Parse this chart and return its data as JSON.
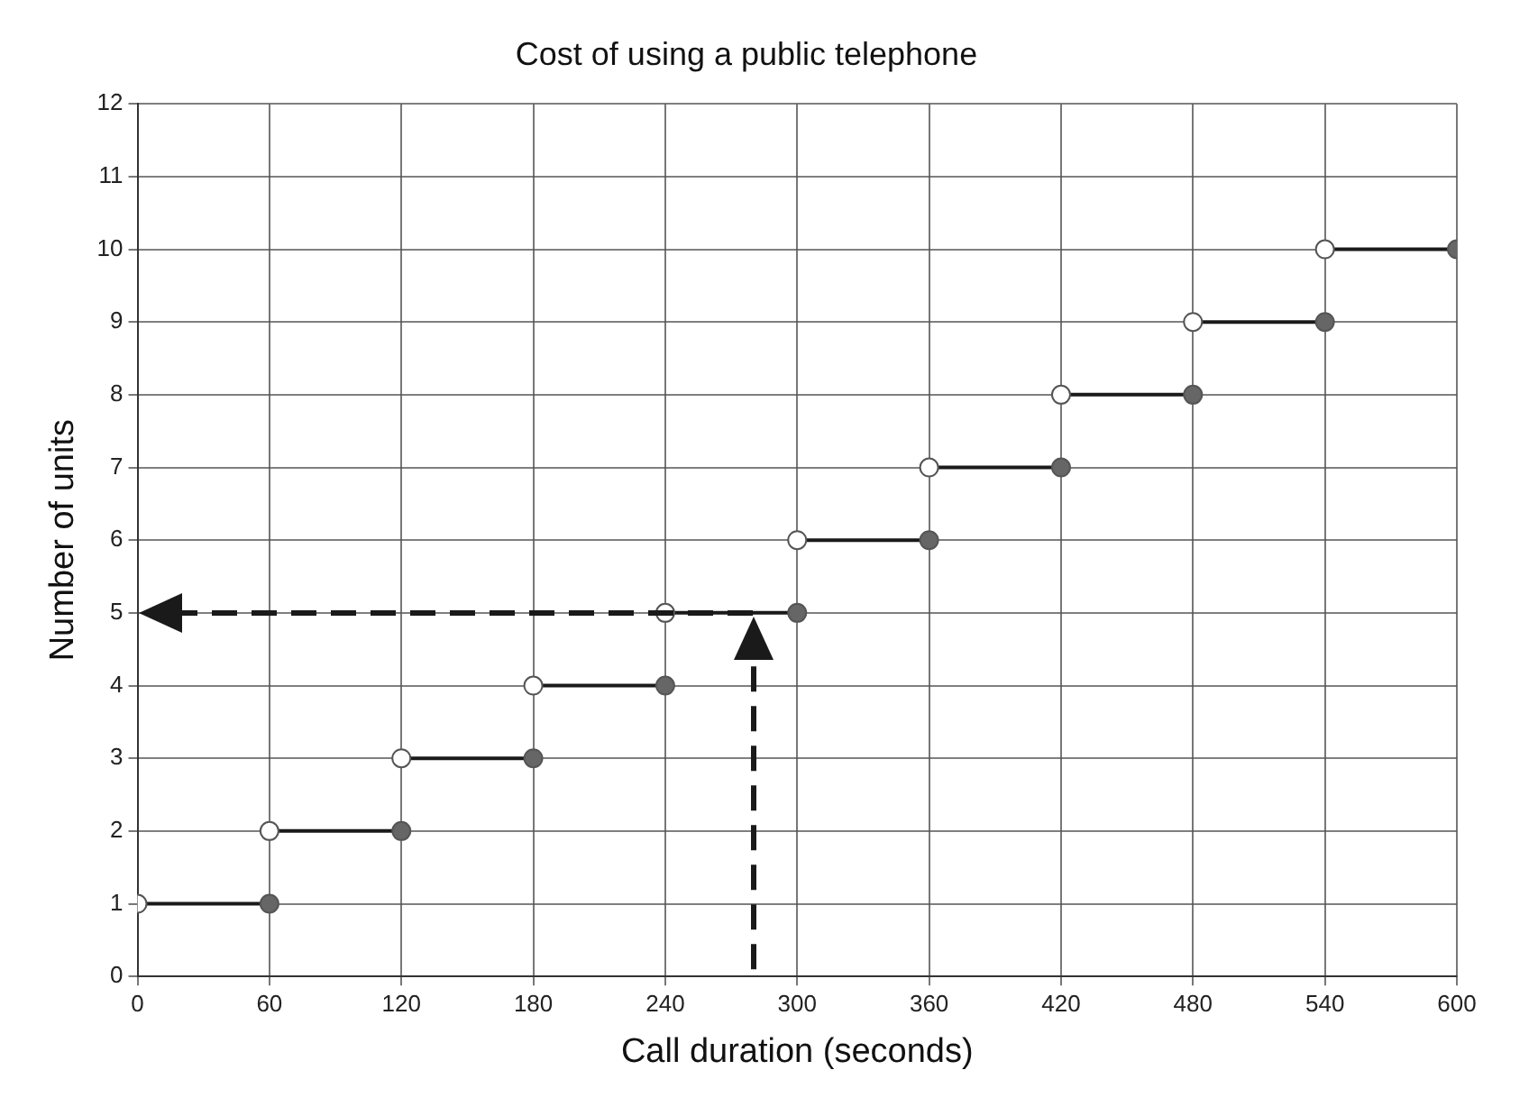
{
  "chart_data": {
    "type": "line",
    "title": "Cost of using a public telephone",
    "xlabel": "Call duration (seconds)",
    "ylabel": "Number of units",
    "xlim": [
      0,
      600
    ],
    "xticks": [
      0,
      60,
      120,
      180,
      240,
      300,
      360,
      420,
      480,
      540,
      600
    ],
    "ylim": [
      0,
      12
    ],
    "yticks": [
      0,
      1,
      2,
      3,
      4,
      5,
      6,
      7,
      8,
      9,
      10,
      11,
      12
    ],
    "grid": true,
    "legend": false,
    "marker": "circle",
    "series": [
      {
        "color": "#1a1a1a",
        "x": [
          0,
          60
        ],
        "values": [
          1,
          1
        ]
      },
      {
        "color": "#1a1a1a",
        "x": [
          60,
          120
        ],
        "values": [
          2,
          2
        ]
      },
      {
        "color": "#1a1a1a",
        "x": [
          120,
          180
        ],
        "values": [
          3,
          3
        ]
      },
      {
        "color": "#1a1a1a",
        "x": [
          180,
          240
        ],
        "values": [
          4,
          4
        ]
      },
      {
        "color": "#1a1a1a",
        "x": [
          240,
          300
        ],
        "values": [
          5,
          5
        ]
      },
      {
        "color": "#1a1a1a",
        "x": [
          300,
          360
        ],
        "values": [
          6,
          6
        ]
      },
      {
        "color": "#1a1a1a",
        "x": [
          360,
          420
        ],
        "values": [
          7,
          7
        ]
      },
      {
        "color": "#1a1a1a",
        "x": [
          420,
          480
        ],
        "values": [
          8,
          8
        ]
      },
      {
        "color": "#1a1a1a",
        "x": [
          480,
          540
        ],
        "values": [
          9,
          9
        ]
      },
      {
        "color": "#1a1a1a",
        "x": [
          540,
          600
        ],
        "values": [
          10,
          10
        ]
      }
    ]
  }
}
